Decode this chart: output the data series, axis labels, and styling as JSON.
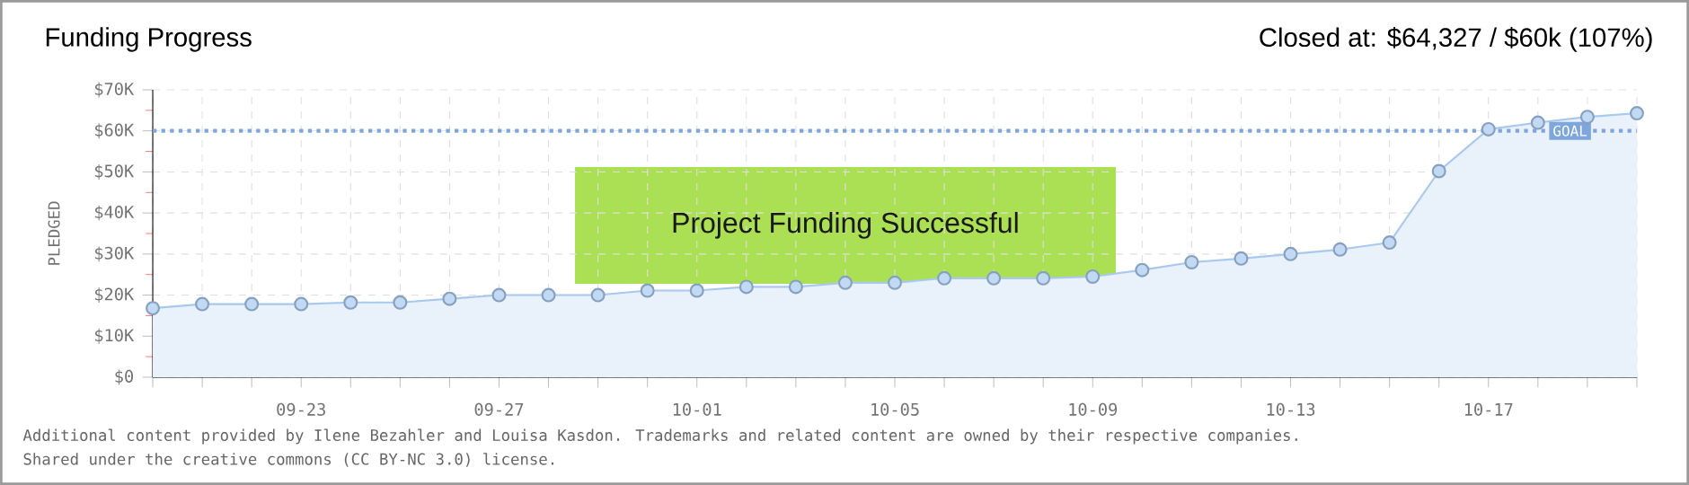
{
  "chart_data": {
    "type": "area",
    "title": "Funding Progress",
    "subtitle": "Closed at: $64,327 / $60k (107%)",
    "ylabel": "PLEDGED",
    "categories": [
      null,
      null,
      null,
      "09-23",
      null,
      null,
      null,
      "09-27",
      null,
      null,
      null,
      "10-01",
      null,
      null,
      null,
      "10-05",
      null,
      null,
      null,
      "10-09",
      null,
      null,
      null,
      "10-13",
      null,
      null,
      null,
      "10-17",
      null,
      null,
      null
    ],
    "series": [
      {
        "color": "#a8c8f0",
        "values": [
          16800,
          17800,
          17800,
          17800,
          18200,
          18200,
          19100,
          20000,
          20000,
          20000,
          21100,
          21100,
          22000,
          22000,
          23000,
          23000,
          24100,
          24100,
          24100,
          24500,
          26100,
          28000,
          28900,
          30000,
          31100,
          32800,
          50200,
          60400,
          62000,
          63400,
          64300
        ]
      }
    ],
    "ylim": [
      0,
      70000
    ],
    "yticks": [
      {
        "value": 0,
        "label": "$0"
      },
      {
        "value": 10000,
        "label": "$10K"
      },
      {
        "value": 20000,
        "label": "$20K"
      },
      {
        "value": 30000,
        "label": "$30K"
      },
      {
        "value": 40000,
        "label": "$40K"
      },
      {
        "value": 50000,
        "label": "$50K"
      },
      {
        "value": 60000,
        "label": "$60K"
      },
      {
        "value": 70000,
        "label": "$70K"
      }
    ],
    "ref_lines": [
      {
        "axis": "y",
        "value": 60000,
        "label": "GOAL",
        "color": "#7ea6dc",
        "line_style": "dotted"
      }
    ],
    "grid": true,
    "marker": "circle",
    "annotations": [
      "Project Funding Successful",
      "Additional content provided by Ilene Bezahler and Louisa Kasdon. Trademarks and related content are owned by their respective companies.",
      "Shared under the creative commons (CC BY-NC 3.0) license."
    ]
  }
}
